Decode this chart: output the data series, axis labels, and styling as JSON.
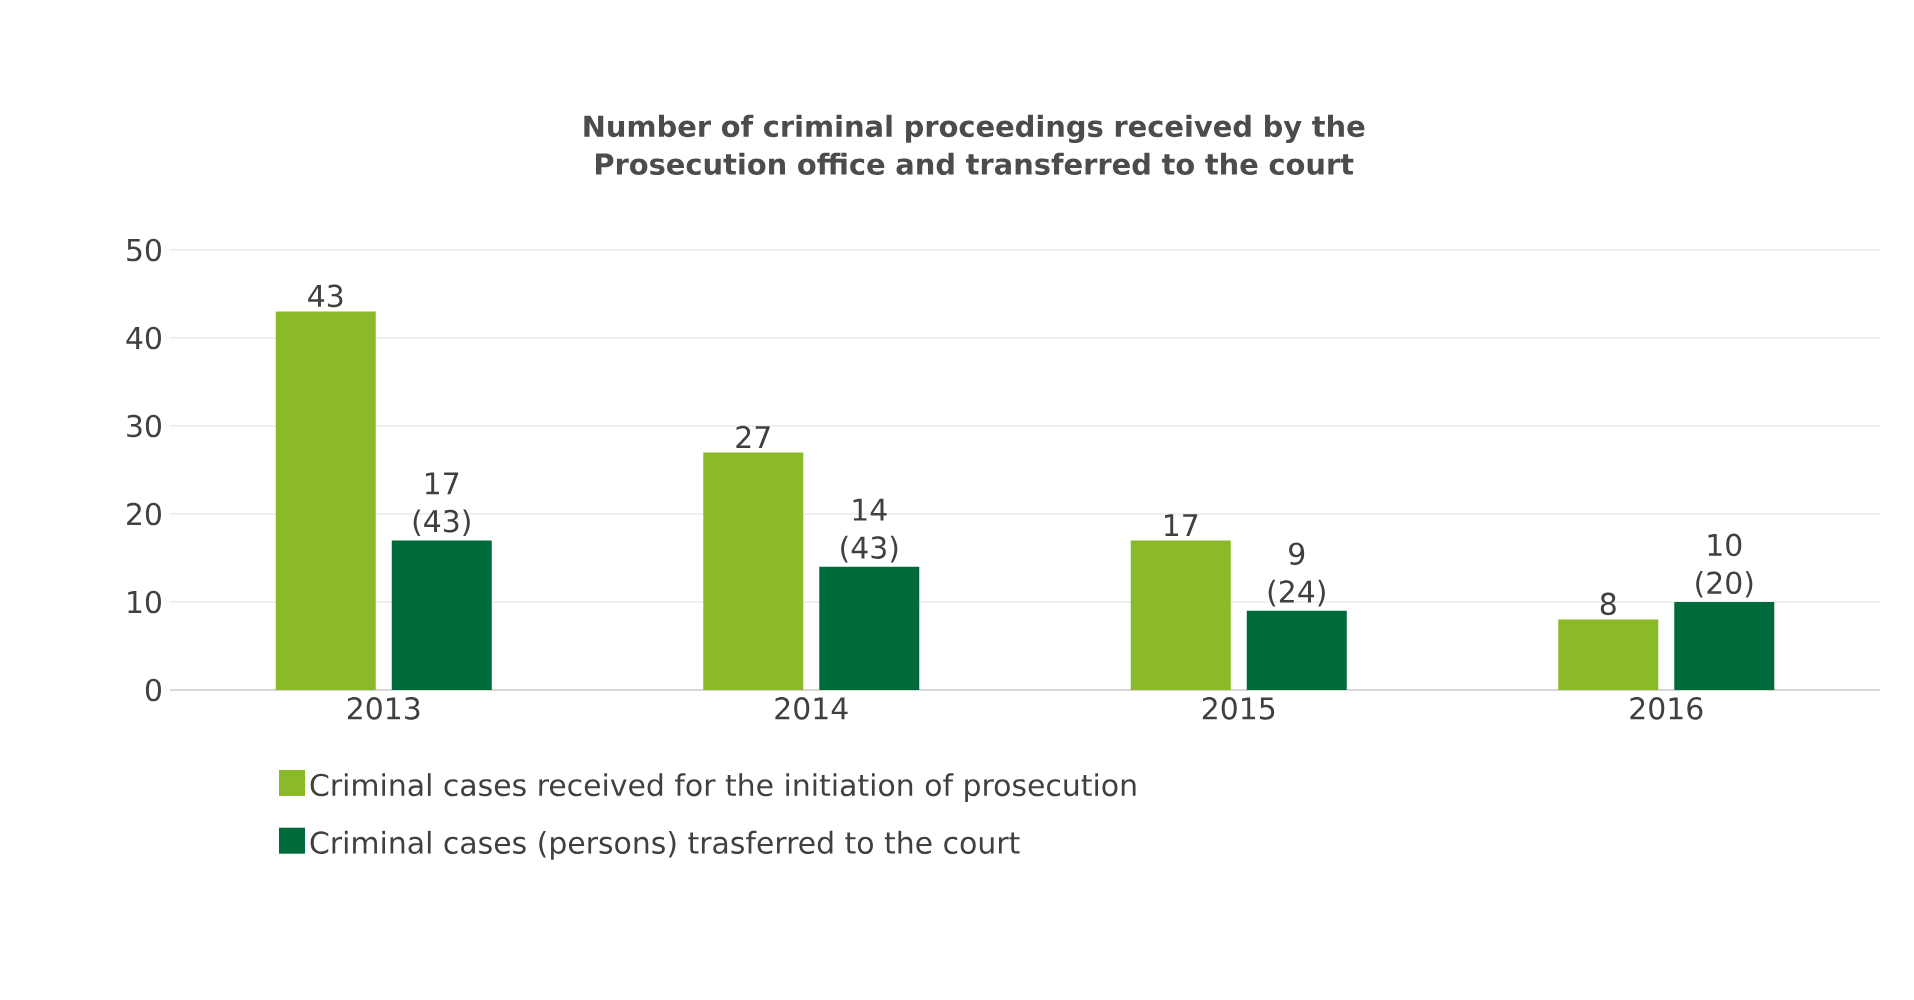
{
  "chart_data": {
    "type": "bar",
    "title": "Number of criminal proceedings received by the Prosecution office and transferred to the court",
    "categories": [
      "2013",
      "2014",
      "2015",
      "2016"
    ],
    "series": [
      {
        "name": "Criminal cases received for the initiation of prosecution",
        "color": "#8aba27",
        "values": [
          43,
          27,
          17,
          8
        ],
        "value_labels": [
          "43",
          "27",
          "17",
          "8"
        ]
      },
      {
        "name": "Criminal cases (persons) trasferred to the court",
        "color": "#006b3a",
        "values": [
          17,
          14,
          9,
          10
        ],
        "value_labels": [
          "17 (43)",
          "14 (43)",
          "9 (24)",
          "10 (20)"
        ]
      }
    ],
    "ylim": [
      0,
      50
    ],
    "yticks": [
      0,
      10,
      20,
      30,
      40,
      50
    ],
    "grid": "y",
    "legend": "bottom"
  }
}
